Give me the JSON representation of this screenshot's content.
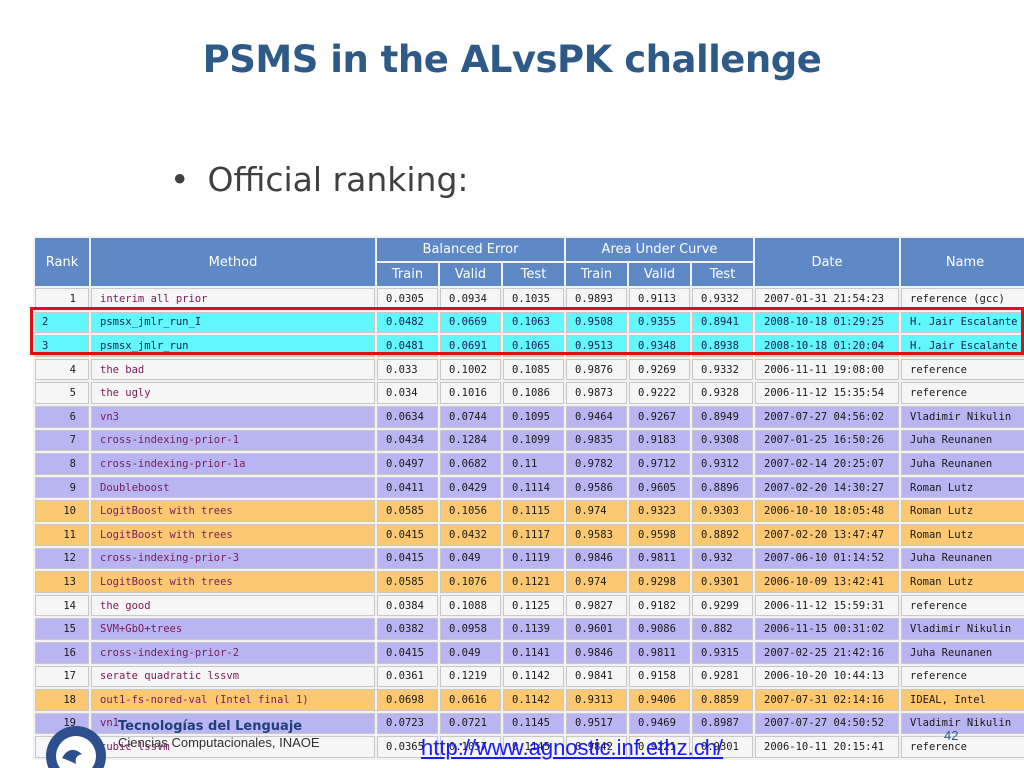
{
  "slide": {
    "title": "PSMS in the ALvsPK challenge",
    "bullet": "Official ranking:",
    "page_number": "42",
    "link": "http://www.agnostic.inf.ethz.ch/"
  },
  "footer": {
    "org_line1": "Tecnologías del Lenguaje",
    "org_line2": "Ciencias Computacionales, INAOE"
  },
  "table": {
    "headers": {
      "rank": "Rank",
      "method": "Method",
      "balanced_error": "Balanced Error",
      "area_under_curve": "Area Under Curve",
      "date": "Date",
      "name": "Name",
      "train": "Train",
      "valid": "Valid",
      "test": "Test"
    },
    "rows": [
      {
        "rank": "1",
        "method": "interim all prior",
        "be_train": "0.0305",
        "be_valid": "0.0934",
        "be_test": "0.1035",
        "auc_train": "0.9893",
        "auc_valid": "0.9113",
        "auc_test": "0.9332",
        "date": "2007-01-31 21:54:23",
        "name": "reference (gcc)",
        "style": "white"
      },
      {
        "rank": "2",
        "method": "psmsx_jmlr_run_I",
        "be_train": "0.0482",
        "be_valid": "0.0669",
        "be_test": "0.1063",
        "auc_train": "0.9508",
        "auc_valid": "0.9355",
        "auc_test": "0.8941",
        "date": "2008-10-18 01:29:25",
        "name": "H. Jair Escalante",
        "style": "cyan"
      },
      {
        "rank": "3",
        "method": "psmsx_jmlr_run",
        "be_train": "0.0481",
        "be_valid": "0.0691",
        "be_test": "0.1065",
        "auc_train": "0.9513",
        "auc_valid": "0.9348",
        "auc_test": "0.8938",
        "date": "2008-10-18 01:20:04",
        "name": "H. Jair Escalante",
        "style": "cyan"
      },
      {
        "rank": "4",
        "method": "the bad",
        "be_train": "0.033",
        "be_valid": "0.1002",
        "be_test": "0.1085",
        "auc_train": "0.9876",
        "auc_valid": "0.9269",
        "auc_test": "0.9332",
        "date": "2006-11-11 19:08:00",
        "name": "reference",
        "style": "white"
      },
      {
        "rank": "5",
        "method": "the ugly",
        "be_train": "0.034",
        "be_valid": "0.1016",
        "be_test": "0.1086",
        "auc_train": "0.9873",
        "auc_valid": "0.9222",
        "auc_test": "0.9328",
        "date": "2006-11-12 15:35:54",
        "name": "reference",
        "style": "white"
      },
      {
        "rank": "6",
        "method": "vn3",
        "be_train": "0.0634",
        "be_valid": "0.0744",
        "be_test": "0.1095",
        "auc_train": "0.9464",
        "auc_valid": "0.9267",
        "auc_test": "0.8949",
        "date": "2007-07-27 04:56:02",
        "name": "Vladimir Nikulin",
        "style": "lav"
      },
      {
        "rank": "7",
        "method": "cross-indexing-prior-1",
        "be_train": "0.0434",
        "be_valid": "0.1284",
        "be_test": "0.1099",
        "auc_train": "0.9835",
        "auc_valid": "0.9183",
        "auc_test": "0.9308",
        "date": "2007-01-25 16:50:26",
        "name": "Juha Reunanen",
        "style": "lav"
      },
      {
        "rank": "8",
        "method": "cross-indexing-prior-1a",
        "be_train": "0.0497",
        "be_valid": "0.0682",
        "be_test": "0.11",
        "auc_train": "0.9782",
        "auc_valid": "0.9712",
        "auc_test": "0.9312",
        "date": "2007-02-14 20:25:07",
        "name": "Juha Reunanen",
        "style": "lav"
      },
      {
        "rank": "9",
        "method": "Doubleboost",
        "be_train": "0.0411",
        "be_valid": "0.0429",
        "be_test": "0.1114",
        "auc_train": "0.9586",
        "auc_valid": "0.9605",
        "auc_test": "0.8896",
        "date": "2007-02-20 14:30:27",
        "name": "Roman Lutz",
        "style": "lav"
      },
      {
        "rank": "10",
        "method": "LogitBoost with trees",
        "be_train": "0.0585",
        "be_valid": "0.1056",
        "be_test": "0.1115",
        "auc_train": "0.974",
        "auc_valid": "0.9323",
        "auc_test": "0.9303",
        "date": "2006-10-10 18:05:48",
        "name": "Roman Lutz",
        "style": "orange"
      },
      {
        "rank": "11",
        "method": "LogitBoost with trees",
        "be_train": "0.0415",
        "be_valid": "0.0432",
        "be_test": "0.1117",
        "auc_train": "0.9583",
        "auc_valid": "0.9598",
        "auc_test": "0.8892",
        "date": "2007-02-20 13:47:47",
        "name": "Roman Lutz",
        "style": "orange"
      },
      {
        "rank": "12",
        "method": "cross-indexing-prior-3",
        "be_train": "0.0415",
        "be_valid": "0.049",
        "be_test": "0.1119",
        "auc_train": "0.9846",
        "auc_valid": "0.9811",
        "auc_test": "0.932",
        "date": "2007-06-10 01:14:52",
        "name": "Juha Reunanen",
        "style": "lav"
      },
      {
        "rank": "13",
        "method": "LogitBoost with trees",
        "be_train": "0.0585",
        "be_valid": "0.1076",
        "be_test": "0.1121",
        "auc_train": "0.974",
        "auc_valid": "0.9298",
        "auc_test": "0.9301",
        "date": "2006-10-09 13:42:41",
        "name": "Roman Lutz",
        "style": "orange"
      },
      {
        "rank": "14",
        "method": "the good",
        "be_train": "0.0384",
        "be_valid": "0.1088",
        "be_test": "0.1125",
        "auc_train": "0.9827",
        "auc_valid": "0.9182",
        "auc_test": "0.9299",
        "date": "2006-11-12 15:59:31",
        "name": "reference",
        "style": "white"
      },
      {
        "rank": "15",
        "method": "SVM+GbO+trees",
        "be_train": "0.0382",
        "be_valid": "0.0958",
        "be_test": "0.1139",
        "auc_train": "0.9601",
        "auc_valid": "0.9086",
        "auc_test": "0.882",
        "date": "2006-11-15 00:31:02",
        "name": "Vladimir Nikulin",
        "style": "lav"
      },
      {
        "rank": "16",
        "method": "cross-indexing-prior-2",
        "be_train": "0.0415",
        "be_valid": "0.049",
        "be_test": "0.1141",
        "auc_train": "0.9846",
        "auc_valid": "0.9811",
        "auc_test": "0.9315",
        "date": "2007-02-25 21:42:16",
        "name": "Juha Reunanen",
        "style": "lav"
      },
      {
        "rank": "17",
        "method": "serate quadratic lssvm",
        "be_train": "0.0361",
        "be_valid": "0.1219",
        "be_test": "0.1142",
        "auc_train": "0.9841",
        "auc_valid": "0.9158",
        "auc_test": "0.9281",
        "date": "2006-10-20 10:44:13",
        "name": "reference",
        "style": "white"
      },
      {
        "rank": "18",
        "method": "out1-fs-nored-val (Intel final 1)",
        "be_train": "0.0698",
        "be_valid": "0.0616",
        "be_test": "0.1142",
        "auc_train": "0.9313",
        "auc_valid": "0.9406",
        "auc_test": "0.8859",
        "date": "2007-07-31 02:14:16",
        "name": "IDEAL, Intel",
        "style": "orange"
      },
      {
        "rank": "19",
        "method": "vn1",
        "be_train": "0.0723",
        "be_valid": "0.0721",
        "be_test": "0.1145",
        "auc_train": "0.9517",
        "auc_valid": "0.9469",
        "auc_test": "0.8987",
        "date": "2007-07-27 04:50:52",
        "name": "Vladimir Nikulin",
        "style": "lav"
      },
      {
        "rank": "20",
        "method": "cubic lssvm",
        "be_train": "0.0365",
        "be_valid": "0.1057",
        "be_test": "0.1145",
        "auc_train": "0.9842",
        "auc_valid": "0.9221",
        "auc_test": "0.9301",
        "date": "2006-10-11 20:15:41",
        "name": "reference",
        "style": "white"
      }
    ]
  },
  "colors": {
    "title": "#2e5a88",
    "header_bg": "#5f88c6",
    "row_white": "#f6f6f6",
    "row_lavender": "#b9b4f2",
    "row_orange": "#fcc972",
    "row_cyan": "#61f7fb",
    "highlight_border": "#e01010",
    "link": "#1a1aff"
  }
}
